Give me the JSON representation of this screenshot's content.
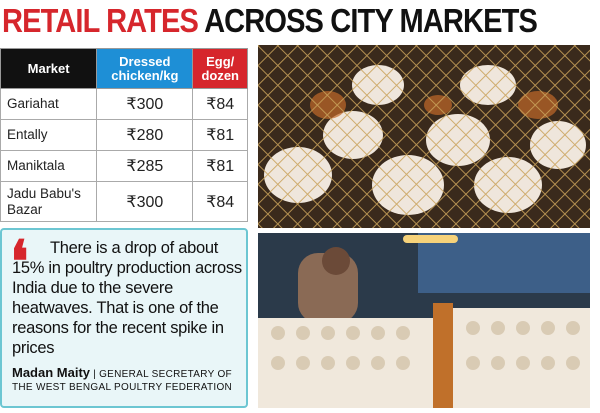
{
  "header": {
    "title_red": "RETAIL RATES",
    "title_black": "ACROSS CITY MARKETS"
  },
  "table": {
    "columns": [
      "Market",
      "Dressed chicken/kg",
      "Egg/ dozen"
    ],
    "rows": [
      [
        "Gariahat",
        "₹300",
        "₹84"
      ],
      [
        "Entally",
        "₹280",
        "₹81"
      ],
      [
        "Maniktala",
        "₹285",
        "₹81"
      ],
      [
        "Jadu Babu's Bazar",
        "₹300",
        "₹84"
      ]
    ]
  },
  "quote": {
    "text": "There is a drop of about 15% in poultry production across India due to the severe heatwaves. That is one of the reasons for the recent spike in prices",
    "name": "Madan Maity",
    "role": "GENERAL SECRETARY OF THE WEST BENGAL POULTRY FEDERATION"
  }
}
